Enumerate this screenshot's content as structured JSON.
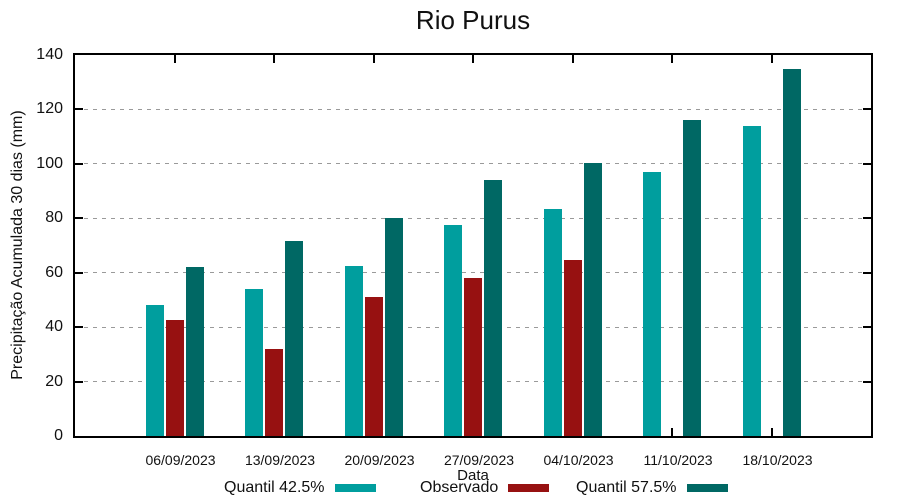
{
  "chart_data": {
    "type": "bar",
    "title": "Rio Purus",
    "xlabel": "Data",
    "ylabel": "Precipitação Acumulada 30 dias (mm)",
    "ylim": [
      0,
      140
    ],
    "ytick_step": 20,
    "ytick_labels": [
      "0",
      "20",
      "40",
      "60",
      "80",
      "100",
      "120",
      "140"
    ],
    "grid": "horizontal-dashed",
    "legend_position": "bottom",
    "categories": [
      "06/09/2023",
      "13/09/2023",
      "20/09/2023",
      "27/09/2023",
      "04/10/2023",
      "11/10/2023",
      "18/10/2023"
    ],
    "series": [
      {
        "name": "Quantil 42.5%",
        "color": "#009E9E",
        "values": [
          48,
          54,
          62.5,
          77.5,
          83.5,
          97,
          114
        ]
      },
      {
        "name": "Observado",
        "color": "#971111",
        "values": [
          42.5,
          32,
          51,
          58,
          64.5,
          null,
          null
        ]
      },
      {
        "name": "Quantil 57.5%",
        "color": "#006864",
        "values": [
          62,
          71.5,
          80,
          94,
          100.5,
          116,
          135
        ]
      }
    ]
  }
}
